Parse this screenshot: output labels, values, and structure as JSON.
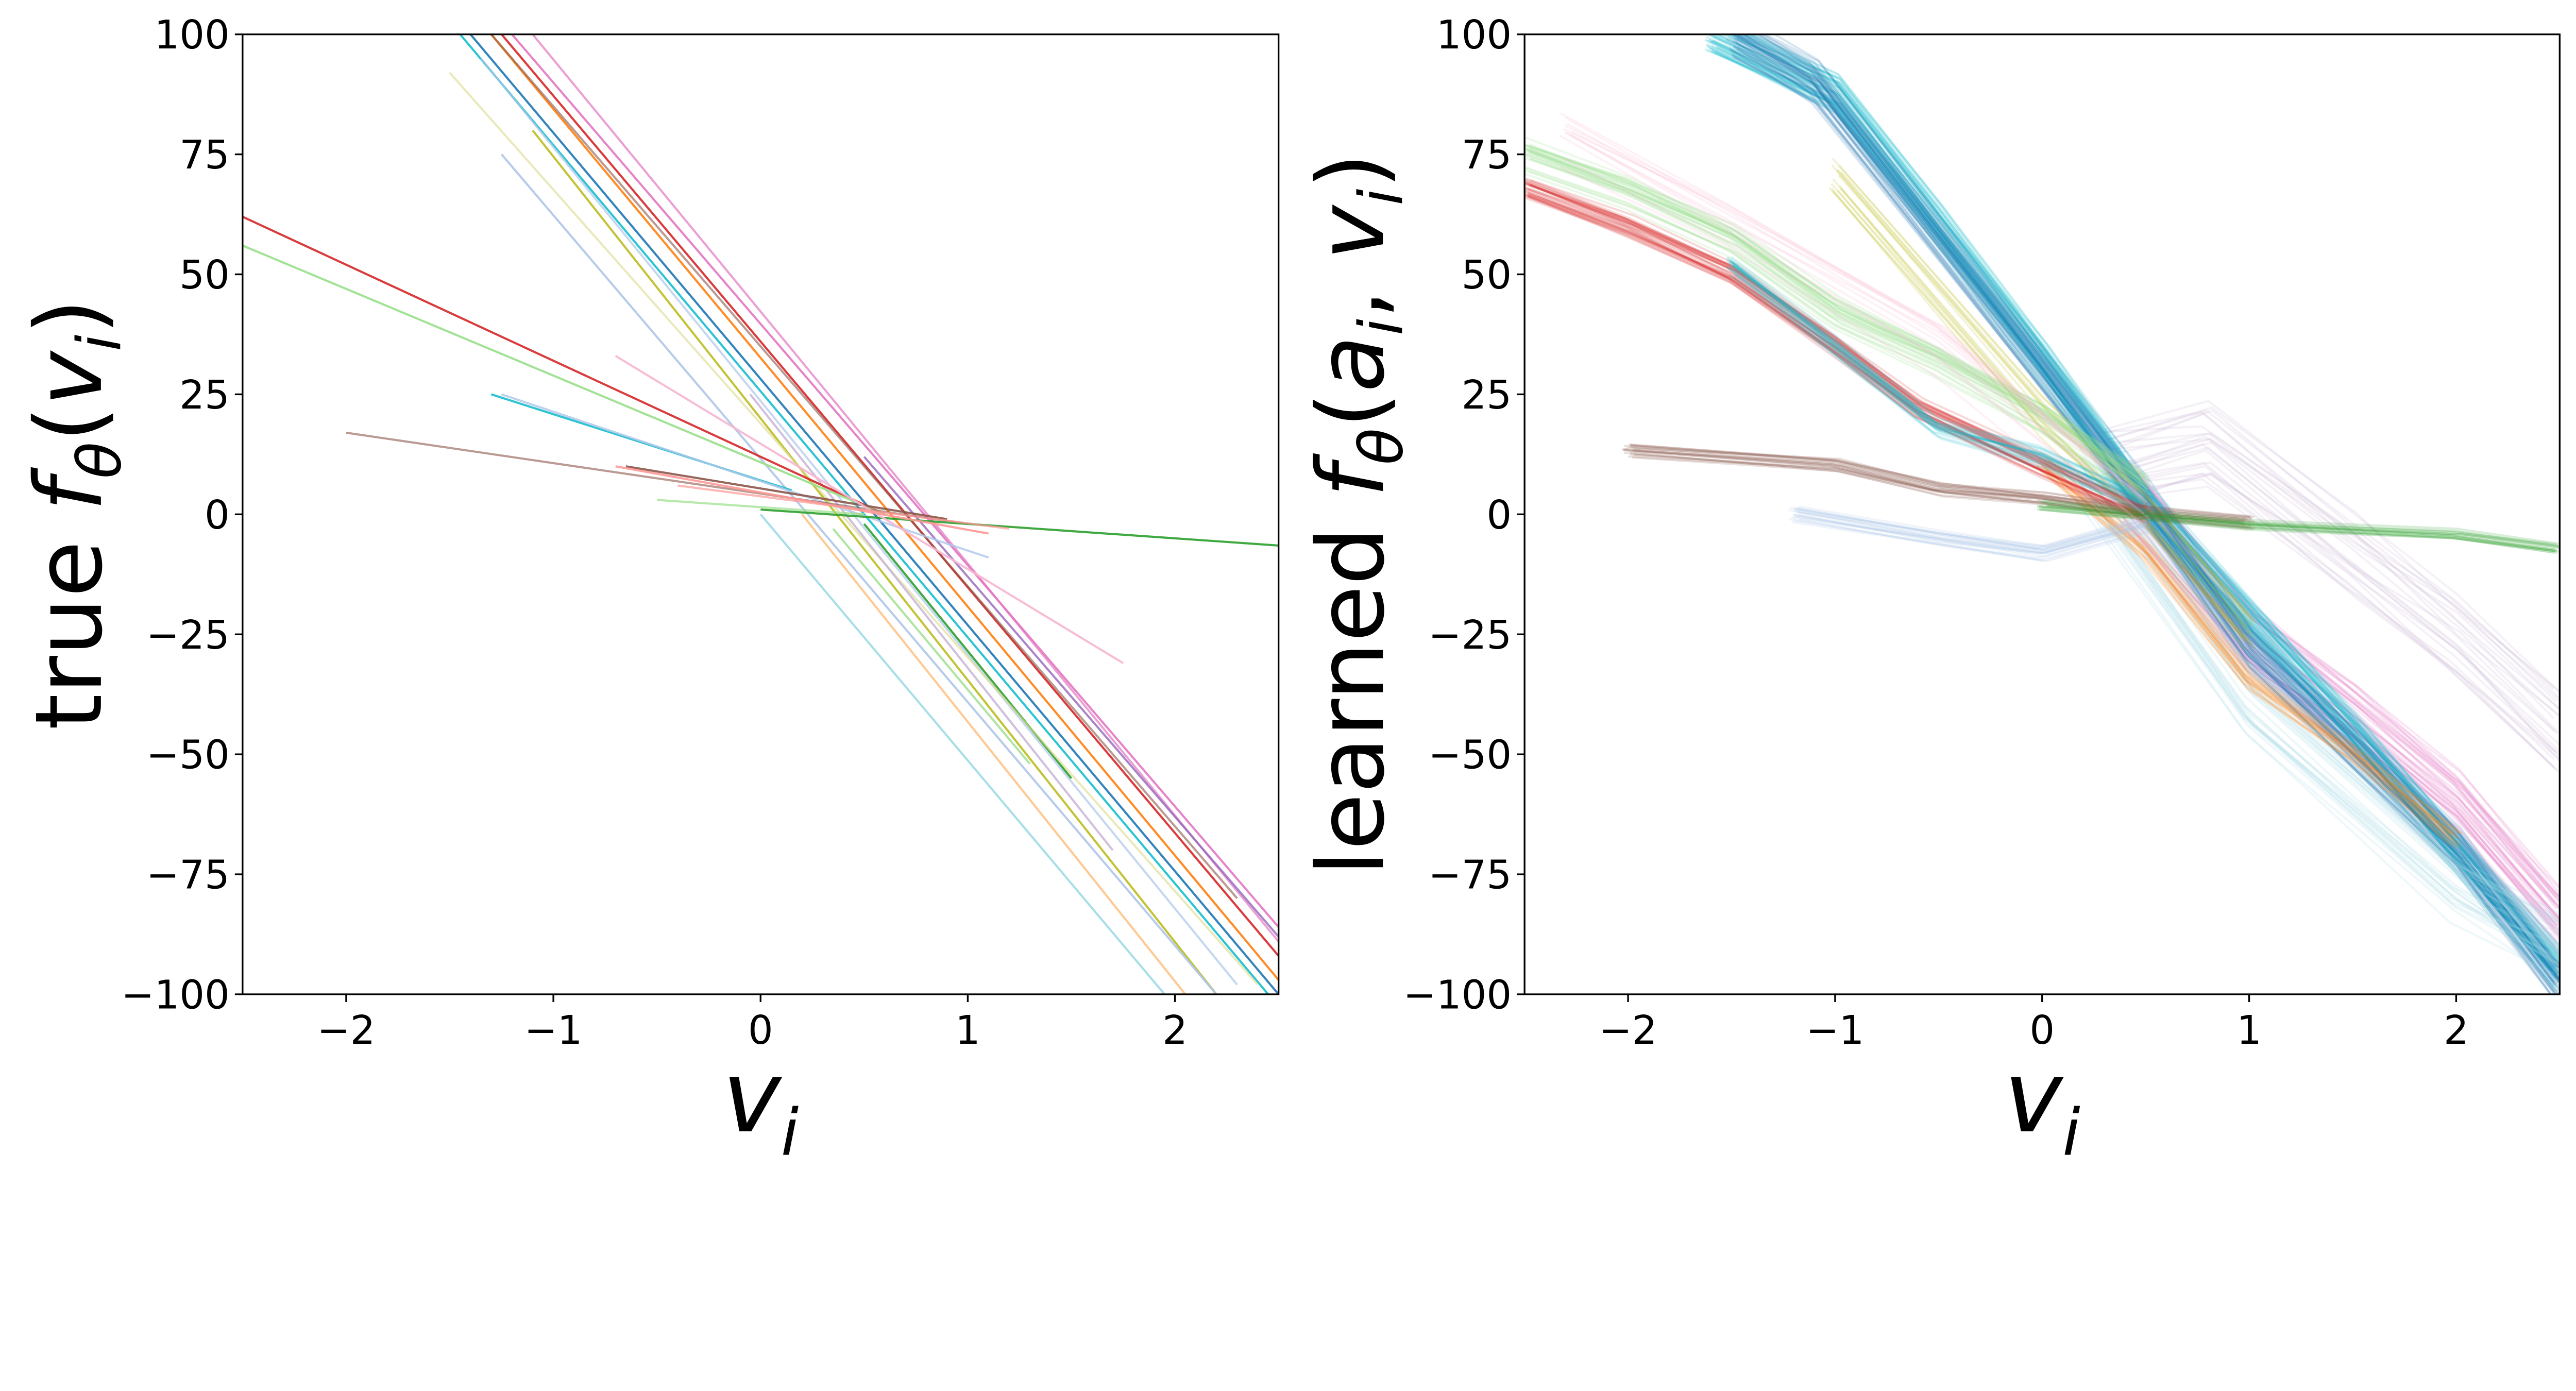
{
  "chart_data": [
    {
      "type": "line",
      "panel": "left",
      "xlabel": {
        "var": "v",
        "sub": "i"
      },
      "ylabel": {
        "prefix": "true ",
        "func": "f",
        "funcsub": "θ",
        "open": "(",
        "var": "v",
        "sub": "i",
        "close": ")"
      },
      "xlim": [
        -2.5,
        2.5
      ],
      "ylim": [
        -100,
        100
      ],
      "xticks": [
        -2,
        -1,
        0,
        1,
        2
      ],
      "xtick_labels": [
        "−2",
        "−1",
        "0",
        "1",
        "2"
      ],
      "yticks": [
        -100,
        -75,
        -50,
        -25,
        0,
        25,
        50,
        75,
        100
      ],
      "ytick_labels": [
        "−100",
        "−75",
        "−50",
        "−25",
        "0",
        "25",
        "50",
        "75",
        "100"
      ],
      "grid": false,
      "series": [
        {
          "color": "#e377c2",
          "alpha": 0.9,
          "points": [
            [
              -1.2,
              100
            ],
            [
              2.5,
              -86
            ]
          ]
        },
        {
          "color": "#e377c2",
          "alpha": 0.7,
          "points": [
            [
              -1.1,
              100
            ],
            [
              2.5,
              -89
            ]
          ]
        },
        {
          "color": "#9467bd",
          "alpha": 0.8,
          "points": [
            [
              0.5,
              12
            ],
            [
              2.5,
              -88
            ]
          ]
        },
        {
          "color": "#1f77b4",
          "alpha": 0.9,
          "points": [
            [
              -1.4,
              100
            ],
            [
              2.5,
              -100
            ]
          ]
        },
        {
          "color": "#17becf",
          "alpha": 0.9,
          "points": [
            [
              -1.45,
              100
            ],
            [
              2.45,
              -100
            ]
          ]
        },
        {
          "color": "#ff7f0e",
          "alpha": 0.9,
          "points": [
            [
              -1.3,
              100
            ],
            [
              2.5,
              -97
            ]
          ]
        },
        {
          "color": "#d62728",
          "alpha": 0.9,
          "points": [
            [
              -1.25,
              100
            ],
            [
              2.5,
              -92
            ]
          ]
        },
        {
          "color": "#8c564b",
          "alpha": 0.6,
          "points": [
            [
              -1.3,
              100
            ],
            [
              2.3,
              -80
            ]
          ]
        },
        {
          "color": "#bcbd22",
          "alpha": 0.9,
          "points": [
            [
              -1.1,
              80
            ],
            [
              2.2,
              -100
            ]
          ]
        },
        {
          "color": "#aec7e8",
          "alpha": 0.9,
          "points": [
            [
              -1.25,
              75
            ],
            [
              2.2,
              -100
            ]
          ]
        },
        {
          "color": "#aec7e8",
          "alpha": 0.7,
          "points": [
            [
              -1.35,
              95
            ],
            [
              2.3,
              -98
            ]
          ]
        },
        {
          "color": "#9edae5",
          "alpha": 0.9,
          "points": [
            [
              0.0,
              0
            ],
            [
              1.95,
              -100
            ]
          ]
        },
        {
          "color": "#ffbb78",
          "alpha": 0.8,
          "points": [
            [
              0.2,
              0
            ],
            [
              2.05,
              -100
            ]
          ]
        },
        {
          "color": "#98df8a",
          "alpha": 0.8,
          "points": [
            [
              0.35,
              -3
            ],
            [
              1.3,
              -52
            ]
          ]
        },
        {
          "color": "#2ca02c",
          "alpha": 0.9,
          "points": [
            [
              0.5,
              -2
            ],
            [
              1.5,
              -55
            ]
          ]
        },
        {
          "color": "#dbdb8d",
          "alpha": 0.6,
          "points": [
            [
              -1.5,
              92
            ],
            [
              2.4,
              -98
            ]
          ]
        },
        {
          "color": "#c5b0d5",
          "alpha": 0.8,
          "points": [
            [
              -0.05,
              25
            ],
            [
              1.7,
              -70
            ]
          ]
        },
        {
          "color": "#d62728",
          "alpha": 0.9,
          "points": [
            [
              -2.5,
              62
            ],
            [
              0.6,
              0
            ]
          ]
        },
        {
          "color": "#98df8a",
          "alpha": 0.9,
          "points": [
            [
              -2.5,
              56
            ],
            [
              0.6,
              0
            ]
          ]
        },
        {
          "color": "#17becf",
          "alpha": 0.9,
          "points": [
            [
              -1.3,
              25
            ],
            [
              0.15,
              5
            ]
          ]
        },
        {
          "color": "#aec7e8",
          "alpha": 0.8,
          "points": [
            [
              -1.25,
              25
            ],
            [
              1.1,
              -9
            ]
          ]
        },
        {
          "color": "#8c564b",
          "alpha": 0.6,
          "points": [
            [
              -2.0,
              17
            ],
            [
              1.0,
              -2
            ]
          ]
        },
        {
          "color": "#8c564b",
          "alpha": 0.9,
          "points": [
            [
              -0.65,
              10
            ],
            [
              0.9,
              -1
            ]
          ]
        },
        {
          "color": "#2ca02c",
          "alpha": 0.9,
          "points": [
            [
              0.0,
              1
            ],
            [
              2.5,
              -6.5
            ]
          ]
        },
        {
          "color": "#98df8a",
          "alpha": 0.7,
          "points": [
            [
              -0.5,
              3
            ],
            [
              0.5,
              0
            ]
          ]
        },
        {
          "color": "#f7b6d2",
          "alpha": 0.9,
          "points": [
            [
              -0.7,
              33
            ],
            [
              1.75,
              -31
            ]
          ]
        },
        {
          "color": "#ff9896",
          "alpha": 0.9,
          "points": [
            [
              -0.7,
              10
            ],
            [
              1.1,
              -4
            ]
          ]
        },
        {
          "color": "#ff9896",
          "alpha": 0.7,
          "points": [
            [
              -0.4,
              6
            ],
            [
              1.2,
              -3
            ]
          ]
        }
      ]
    },
    {
      "type": "line",
      "panel": "right",
      "xlabel": {
        "var": "v",
        "sub": "i"
      },
      "ylabel": {
        "prefix": "learned ",
        "func": "f",
        "funcsub": "θ",
        "open": "(",
        "var": "a",
        "sub": "i",
        "sep": ", ",
        "var2": "v",
        "sub2": "i",
        "close": ")"
      },
      "xlim": [
        -2.5,
        2.5
      ],
      "ylim": [
        -100,
        100
      ],
      "xticks": [
        -2,
        -1,
        0,
        1,
        2
      ],
      "xtick_labels": [
        "−2",
        "−1",
        "0",
        "1",
        "2"
      ],
      "yticks": [
        -100,
        -75,
        -50,
        -25,
        0,
        25,
        50,
        75,
        100
      ],
      "ytick_labels": [
        "−100",
        "−75",
        "−50",
        "−25",
        "0",
        "25",
        "50",
        "75",
        "100"
      ],
      "grid": false,
      "bundles": [
        {
          "color": "#e377c2",
          "count": 40,
          "spread": 6,
          "points": [
            [
              0.4,
              5
            ],
            [
              1.0,
              -25
            ],
            [
              1.5,
              -42
            ],
            [
              2.0,
              -60
            ],
            [
              2.5,
              -85
            ]
          ]
        },
        {
          "color": "#c5b0d5",
          "count": 25,
          "spread": 8,
          "points": [
            [
              0.3,
              10
            ],
            [
              0.8,
              15
            ],
            [
              1.5,
              -8
            ],
            [
              2.0,
              -25
            ],
            [
              2.5,
              -45
            ]
          ]
        },
        {
          "color": "#17becf",
          "count": 50,
          "spread": 4,
          "points": [
            [
              -1.6,
              100
            ],
            [
              -1.0,
              88
            ],
            [
              -0.5,
              60
            ],
            [
              0.0,
              32
            ],
            [
              0.5,
              2
            ],
            [
              1.5,
              -45
            ],
            [
              2.5,
              -95
            ]
          ]
        },
        {
          "color": "#1f77b4",
          "count": 40,
          "spread": 4,
          "points": [
            [
              -1.5,
              100
            ],
            [
              -1.1,
              90
            ],
            [
              0.0,
              30
            ],
            [
              0.5,
              2
            ],
            [
              1.0,
              -28
            ],
            [
              2.0,
              -70
            ],
            [
              2.5,
              -98
            ]
          ]
        },
        {
          "color": "#9edae5",
          "count": 25,
          "spread": 6,
          "points": [
            [
              0.2,
              8
            ],
            [
              1.0,
              -40
            ],
            [
              2.0,
              -78
            ],
            [
              2.5,
              -90
            ]
          ]
        },
        {
          "color": "#ff7f0e",
          "count": 15,
          "spread": 2,
          "points": [
            [
              0.0,
              10
            ],
            [
              0.5,
              -8
            ],
            [
              1.0,
              -35
            ],
            [
              1.5,
              -50
            ],
            [
              2.0,
              -68
            ]
          ]
        },
        {
          "color": "#bcbd22",
          "count": 15,
          "spread": 4,
          "points": [
            [
              -1.0,
              70
            ],
            [
              0.0,
              20
            ],
            [
              0.5,
              0
            ],
            [
              1.0,
              -25
            ]
          ]
        },
        {
          "color": "#98df8a",
          "count": 30,
          "spread": 3,
          "points": [
            [
              -2.5,
              75
            ],
            [
              -2.0,
              67
            ],
            [
              -1.5,
              57
            ],
            [
              -1.0,
              42
            ],
            [
              -0.5,
              32
            ],
            [
              0.0,
              20
            ],
            [
              0.5,
              5
            ]
          ]
        },
        {
          "color": "#d62728",
          "count": 30,
          "spread": 2,
          "points": [
            [
              -2.5,
              68
            ],
            [
              -2.0,
              60
            ],
            [
              -1.5,
              50
            ],
            [
              -1.0,
              35
            ],
            [
              -0.6,
              22
            ],
            [
              0.0,
              10
            ],
            [
              0.5,
              0
            ]
          ]
        },
        {
          "color": "#17becf",
          "count": 20,
          "spread": 2,
          "points": [
            [
              -1.5,
              52
            ],
            [
              -1.0,
              35
            ],
            [
              -0.5,
              18
            ],
            [
              0.0,
              12
            ],
            [
              0.5,
              2
            ]
          ]
        },
        {
          "color": "#8c564b",
          "count": 20,
          "spread": 1.5,
          "points": [
            [
              -2.0,
              13
            ],
            [
              -1.0,
              10
            ],
            [
              -0.5,
              5
            ],
            [
              0.0,
              3
            ],
            [
              0.5,
              0
            ],
            [
              1.0,
              -2
            ]
          ]
        },
        {
          "color": "#2ca02c",
          "count": 15,
          "spread": 1,
          "points": [
            [
              0.0,
              2
            ],
            [
              1.0,
              -2
            ],
            [
              2.0,
              -4
            ],
            [
              2.5,
              -7
            ]
          ]
        },
        {
          "color": "#aec7e8",
          "count": 20,
          "spread": 1.5,
          "points": [
            [
              -1.2,
              0
            ],
            [
              -0.5,
              -5
            ],
            [
              0.0,
              -8
            ],
            [
              0.5,
              -2
            ]
          ]
        },
        {
          "color": "#f7b6d2",
          "count": 12,
          "spread": 5,
          "points": [
            [
              -2.3,
              78
            ],
            [
              -1.5,
              60
            ],
            [
              -0.5,
              35
            ],
            [
              0.5,
              0
            ]
          ]
        }
      ]
    }
  ]
}
